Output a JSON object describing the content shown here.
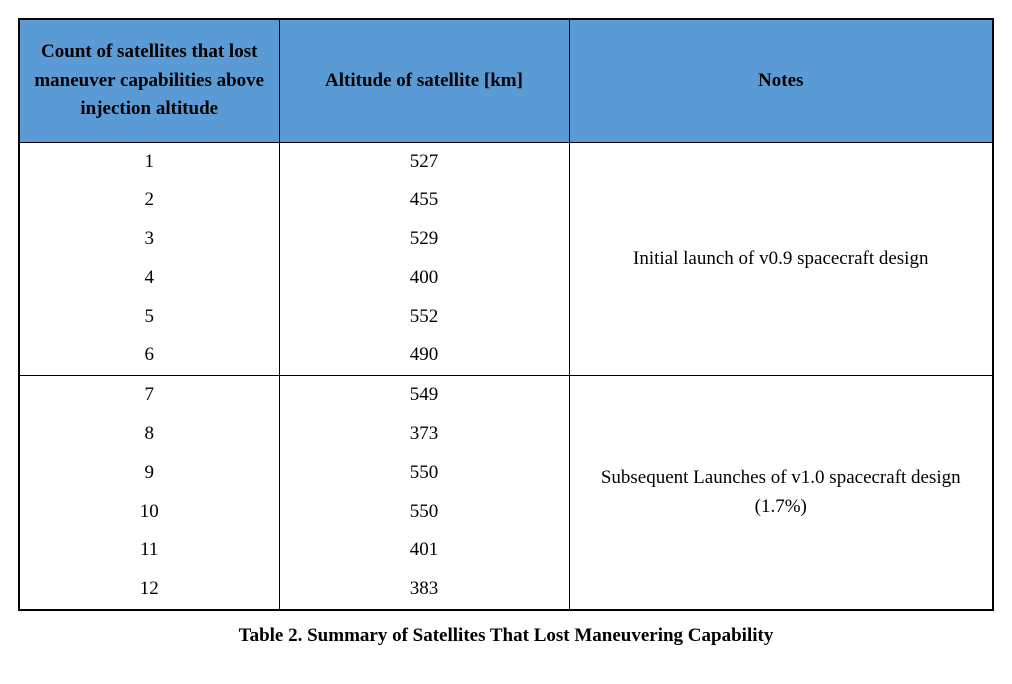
{
  "table": {
    "columns": [
      "Count of satellites that lost maneuver capabilities above injection altitude",
      "Altitude of satellite [km]",
      "Notes"
    ],
    "groups": [
      {
        "note": "Initial launch of v0.9 spacecraft design",
        "rows": [
          {
            "count": "1",
            "altitude": "527"
          },
          {
            "count": "2",
            "altitude": "455"
          },
          {
            "count": "3",
            "altitude": "529"
          },
          {
            "count": "4",
            "altitude": "400"
          },
          {
            "count": "5",
            "altitude": "552"
          },
          {
            "count": "6",
            "altitude": "490"
          }
        ]
      },
      {
        "note": "Subsequent Launches of v1.0 spacecraft design (1.7%)",
        "rows": [
          {
            "count": "7",
            "altitude": "549"
          },
          {
            "count": "8",
            "altitude": "373"
          },
          {
            "count": "9",
            "altitude": "550"
          },
          {
            "count": "10",
            "altitude": "550"
          },
          {
            "count": "11",
            "altitude": "401"
          },
          {
            "count": "12",
            "altitude": "383"
          }
        ]
      }
    ],
    "header_bg": "#5b9bd5",
    "border_color": "#000000",
    "header_fontsize": 19,
    "cell_fontsize": 19,
    "caption_fontsize": 19
  },
  "caption": "Table 2.  Summary of Satellites That Lost Maneuvering Capability"
}
